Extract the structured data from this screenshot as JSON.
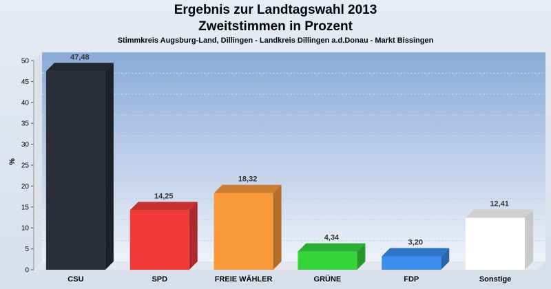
{
  "chart_data": {
    "type": "bar",
    "title_line1": "Ergebnis zur Landtagswahl 2013",
    "title_line2": "Zweitstimmen in Prozent",
    "subtitle": "Stimmkreis Augsburg-Land, Dillingen - Landkreis Dillingen a.d.Donau - Markt Bissingen",
    "ylabel": "%",
    "ylim": [
      0,
      50
    ],
    "yticks": [
      0,
      5,
      10,
      15,
      20,
      25,
      30,
      35,
      40,
      45,
      50
    ],
    "grid": true,
    "categories": [
      "CSU",
      "SPD",
      "FREIE WÄHLER",
      "GRÜNE",
      "FDP",
      "Sonstige"
    ],
    "values": [
      47.48,
      14.25,
      18.32,
      4.34,
      3.2,
      12.41
    ],
    "value_labels": [
      "47,48",
      "14,25",
      "18,32",
      "4,34",
      "3,20",
      "12,41"
    ],
    "colors": [
      "#2b2e38",
      "#f23a3a",
      "#f99a3a",
      "#35d43a",
      "#3a8ef0",
      "#ffffff"
    ]
  }
}
